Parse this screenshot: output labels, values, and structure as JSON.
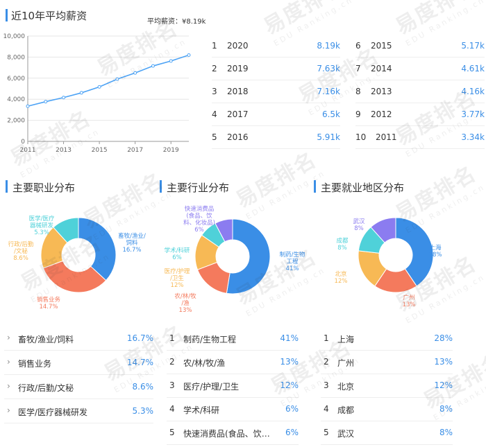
{
  "salary": {
    "title": "近10年平均薪资",
    "avg_label": "平均薪资：¥8.19k",
    "chart_data": {
      "type": "line",
      "x": [
        2011,
        2012,
        2013,
        2014,
        2015,
        2016,
        2017,
        2018,
        2019,
        2020
      ],
      "y": [
        3340,
        3770,
        4160,
        4610,
        5170,
        5910,
        6500,
        7160,
        7630,
        8190
      ],
      "xticks": [
        "2011",
        "2013",
        "2015",
        "2017",
        "2019"
      ],
      "yticks": [
        "0",
        "2,000",
        "4,000",
        "6,000",
        "8,000",
        "10,000"
      ],
      "ylim": [
        0,
        10000
      ],
      "grid": true,
      "color": "#4da3f5"
    },
    "table": [
      {
        "rank": "1",
        "year": "2020",
        "value": "8.19k"
      },
      {
        "rank": "2",
        "year": "2019",
        "value": "7.63k"
      },
      {
        "rank": "3",
        "year": "2018",
        "value": "7.16k"
      },
      {
        "rank": "4",
        "year": "2017",
        "value": "6.5k"
      },
      {
        "rank": "5",
        "year": "2016",
        "value": "5.91k"
      },
      {
        "rank": "6",
        "year": "2015",
        "value": "5.17k"
      },
      {
        "rank": "7",
        "year": "2014",
        "value": "4.61k"
      },
      {
        "rank": "8",
        "year": "2013",
        "value": "4.16k"
      },
      {
        "rank": "9",
        "year": "2012",
        "value": "3.77k"
      },
      {
        "rank": "10",
        "year": "2011",
        "value": "3.34k"
      }
    ]
  },
  "occupation": {
    "title": "主要职业分布",
    "chart_data": {
      "type": "pie",
      "slices": [
        {
          "label": "畜牧/渔业/饲料",
          "value": 16.7,
          "color": "#3a8ee6",
          "pct": "16.7%"
        },
        {
          "label": "销售业务",
          "value": 14.7,
          "color": "#f47a5d",
          "pct": "14.7%"
        },
        {
          "label": "行政/后勤/文秘",
          "value": 8.6,
          "color": "#f7b955",
          "pct": "8.6%"
        },
        {
          "label": "医学/医疗器械研发",
          "value": 5.3,
          "color": "#4fd1d9",
          "pct": "5.3%"
        }
      ],
      "chart_labels": [
        [
          "畜牧/渔业/",
          "饲料",
          "16.7%"
        ],
        [
          "销售业务",
          "14.7%"
        ],
        [
          "行政/后勤",
          "/文秘",
          "8.6%"
        ],
        [
          "医学/医疗",
          "器械研发",
          "5.3%"
        ]
      ]
    },
    "list": [
      {
        "name": "畜牧/渔业/饲料",
        "pct": "16.7%"
      },
      {
        "name": "销售业务",
        "pct": "14.7%"
      },
      {
        "name": "行政/后勤/文秘",
        "pct": "8.6%"
      },
      {
        "name": "医学/医疗器械研发",
        "pct": "5.3%"
      }
    ]
  },
  "industry": {
    "title": "主要行业分布",
    "chart_data": {
      "type": "pie",
      "slices": [
        {
          "label": "制药/生物工程",
          "value": 41,
          "color": "#3a8ee6",
          "pct": "41%"
        },
        {
          "label": "农/林/牧/渔",
          "value": 13,
          "color": "#f47a5d",
          "pct": "13%"
        },
        {
          "label": "医疗/护理/卫生",
          "value": 12,
          "color": "#f7b955",
          "pct": "12%"
        },
        {
          "label": "学术/科研",
          "value": 6,
          "color": "#4fd1d9",
          "pct": "6%"
        },
        {
          "label": "快速消费品(食品、饮料、化妆品)",
          "value": 6,
          "color": "#8b7cf0",
          "pct": "6%"
        }
      ],
      "chart_labels": [
        [
          "制药/生物",
          "工程",
          "41%"
        ],
        [
          "农/林/牧",
          "/渔",
          "13%"
        ],
        [
          "医疗/护理",
          "/卫生",
          "12%"
        ],
        [
          "学术/科研",
          "6%"
        ],
        [
          "快速消费品",
          "(食品、饮",
          "料、化妆品)",
          "6%"
        ]
      ]
    },
    "list": [
      {
        "rank": "1",
        "name": "制药/生物工程",
        "pct": "41%"
      },
      {
        "rank": "2",
        "name": "农/林/牧/渔",
        "pct": "13%"
      },
      {
        "rank": "3",
        "name": "医疗/护理/卫生",
        "pct": "12%"
      },
      {
        "rank": "4",
        "name": "学术/科研",
        "pct": "6%"
      },
      {
        "rank": "5",
        "name": "快速消费品(食品、饮料...",
        "pct": "6%"
      }
    ]
  },
  "region": {
    "title": "主要就业地区分布",
    "chart_data": {
      "type": "pie",
      "slices": [
        {
          "label": "上海",
          "value": 28,
          "color": "#3a8ee6",
          "pct": "28%"
        },
        {
          "label": "广州",
          "value": 13,
          "color": "#f47a5d",
          "pct": "13%"
        },
        {
          "label": "北京",
          "value": 12,
          "color": "#f7b955",
          "pct": "12%"
        },
        {
          "label": "成都",
          "value": 8,
          "color": "#4fd1d9",
          "pct": "8%"
        },
        {
          "label": "武汉",
          "value": 8,
          "color": "#8b7cf0",
          "pct": "8%"
        }
      ],
      "chart_labels": [
        [
          "上海",
          "28%"
        ],
        [
          "广州",
          "13%"
        ],
        [
          "北京",
          "12%"
        ],
        [
          "成都",
          "8%"
        ],
        [
          "武汉",
          "8%"
        ]
      ]
    },
    "list": [
      {
        "rank": "1",
        "name": "上海",
        "pct": "28%"
      },
      {
        "rank": "2",
        "name": "广州",
        "pct": "13%"
      },
      {
        "rank": "3",
        "name": "北京",
        "pct": "12%"
      },
      {
        "rank": "4",
        "name": "成都",
        "pct": "8%"
      },
      {
        "rank": "5",
        "name": "武汉",
        "pct": "8%"
      }
    ]
  },
  "watermark": {
    "brand": "易度排名",
    "sub": "EDU Ranking.cn"
  },
  "colors": {
    "accent": "#3a8ee6",
    "line": "#4da3f5"
  }
}
